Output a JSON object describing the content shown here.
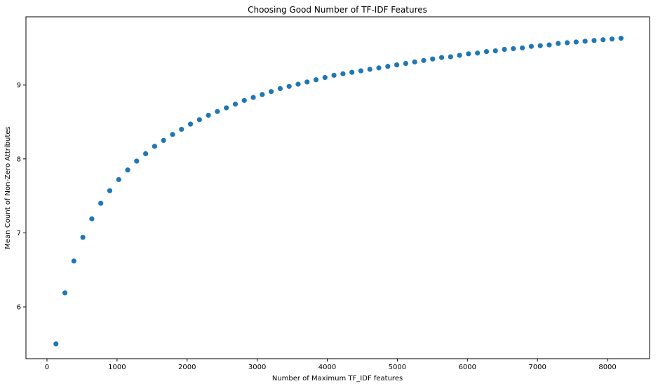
{
  "chart_data": {
    "type": "scatter",
    "title": "Choosing Good Number of TF-IDF Features",
    "xlabel": "Number of Maximum TF_IDF features",
    "ylabel": "Mean Count of Non-Zero Attributes",
    "xlim": [
      -300,
      8600
    ],
    "ylim": [
      5.3,
      9.92
    ],
    "xticks": [
      0,
      1000,
      2000,
      3000,
      4000,
      5000,
      6000,
      7000,
      8000
    ],
    "yticks": [
      6,
      7,
      8,
      9
    ],
    "grid": false,
    "marker_color": "#1f77b4",
    "series": [
      {
        "x": [
          128,
          256,
          384,
          512,
          640,
          768,
          896,
          1024,
          1152,
          1280,
          1408,
          1536,
          1664,
          1792,
          1920,
          2048,
          2176,
          2304,
          2432,
          2560,
          2688,
          2816,
          2944,
          3072,
          3200,
          3328,
          3456,
          3584,
          3712,
          3840,
          3968,
          4096,
          4224,
          4352,
          4480,
          4608,
          4736,
          4864,
          4992,
          5120,
          5248,
          5376,
          5504,
          5632,
          5760,
          5888,
          6016,
          6144,
          6272,
          6400,
          6528,
          6656,
          6784,
          6912,
          7040,
          7168,
          7296,
          7424,
          7552,
          7680,
          7808,
          7936,
          8064,
          8192
        ],
        "y": [
          5.5,
          6.19,
          6.62,
          6.94,
          7.19,
          7.4,
          7.57,
          7.72,
          7.85,
          7.97,
          8.07,
          8.17,
          8.25,
          8.33,
          8.4,
          8.47,
          8.53,
          8.59,
          8.64,
          8.69,
          8.74,
          8.79,
          8.83,
          8.87,
          8.91,
          8.95,
          8.98,
          9.01,
          9.04,
          9.07,
          9.1,
          9.13,
          9.15,
          9.17,
          9.19,
          9.21,
          9.23,
          9.25,
          9.27,
          9.29,
          9.31,
          9.33,
          9.35,
          9.37,
          9.38,
          9.4,
          9.42,
          9.43,
          9.45,
          9.46,
          9.48,
          9.49,
          9.5,
          9.52,
          9.53,
          9.54,
          9.56,
          9.57,
          9.58,
          9.59,
          9.6,
          9.61,
          9.62,
          9.63
        ]
      }
    ]
  }
}
